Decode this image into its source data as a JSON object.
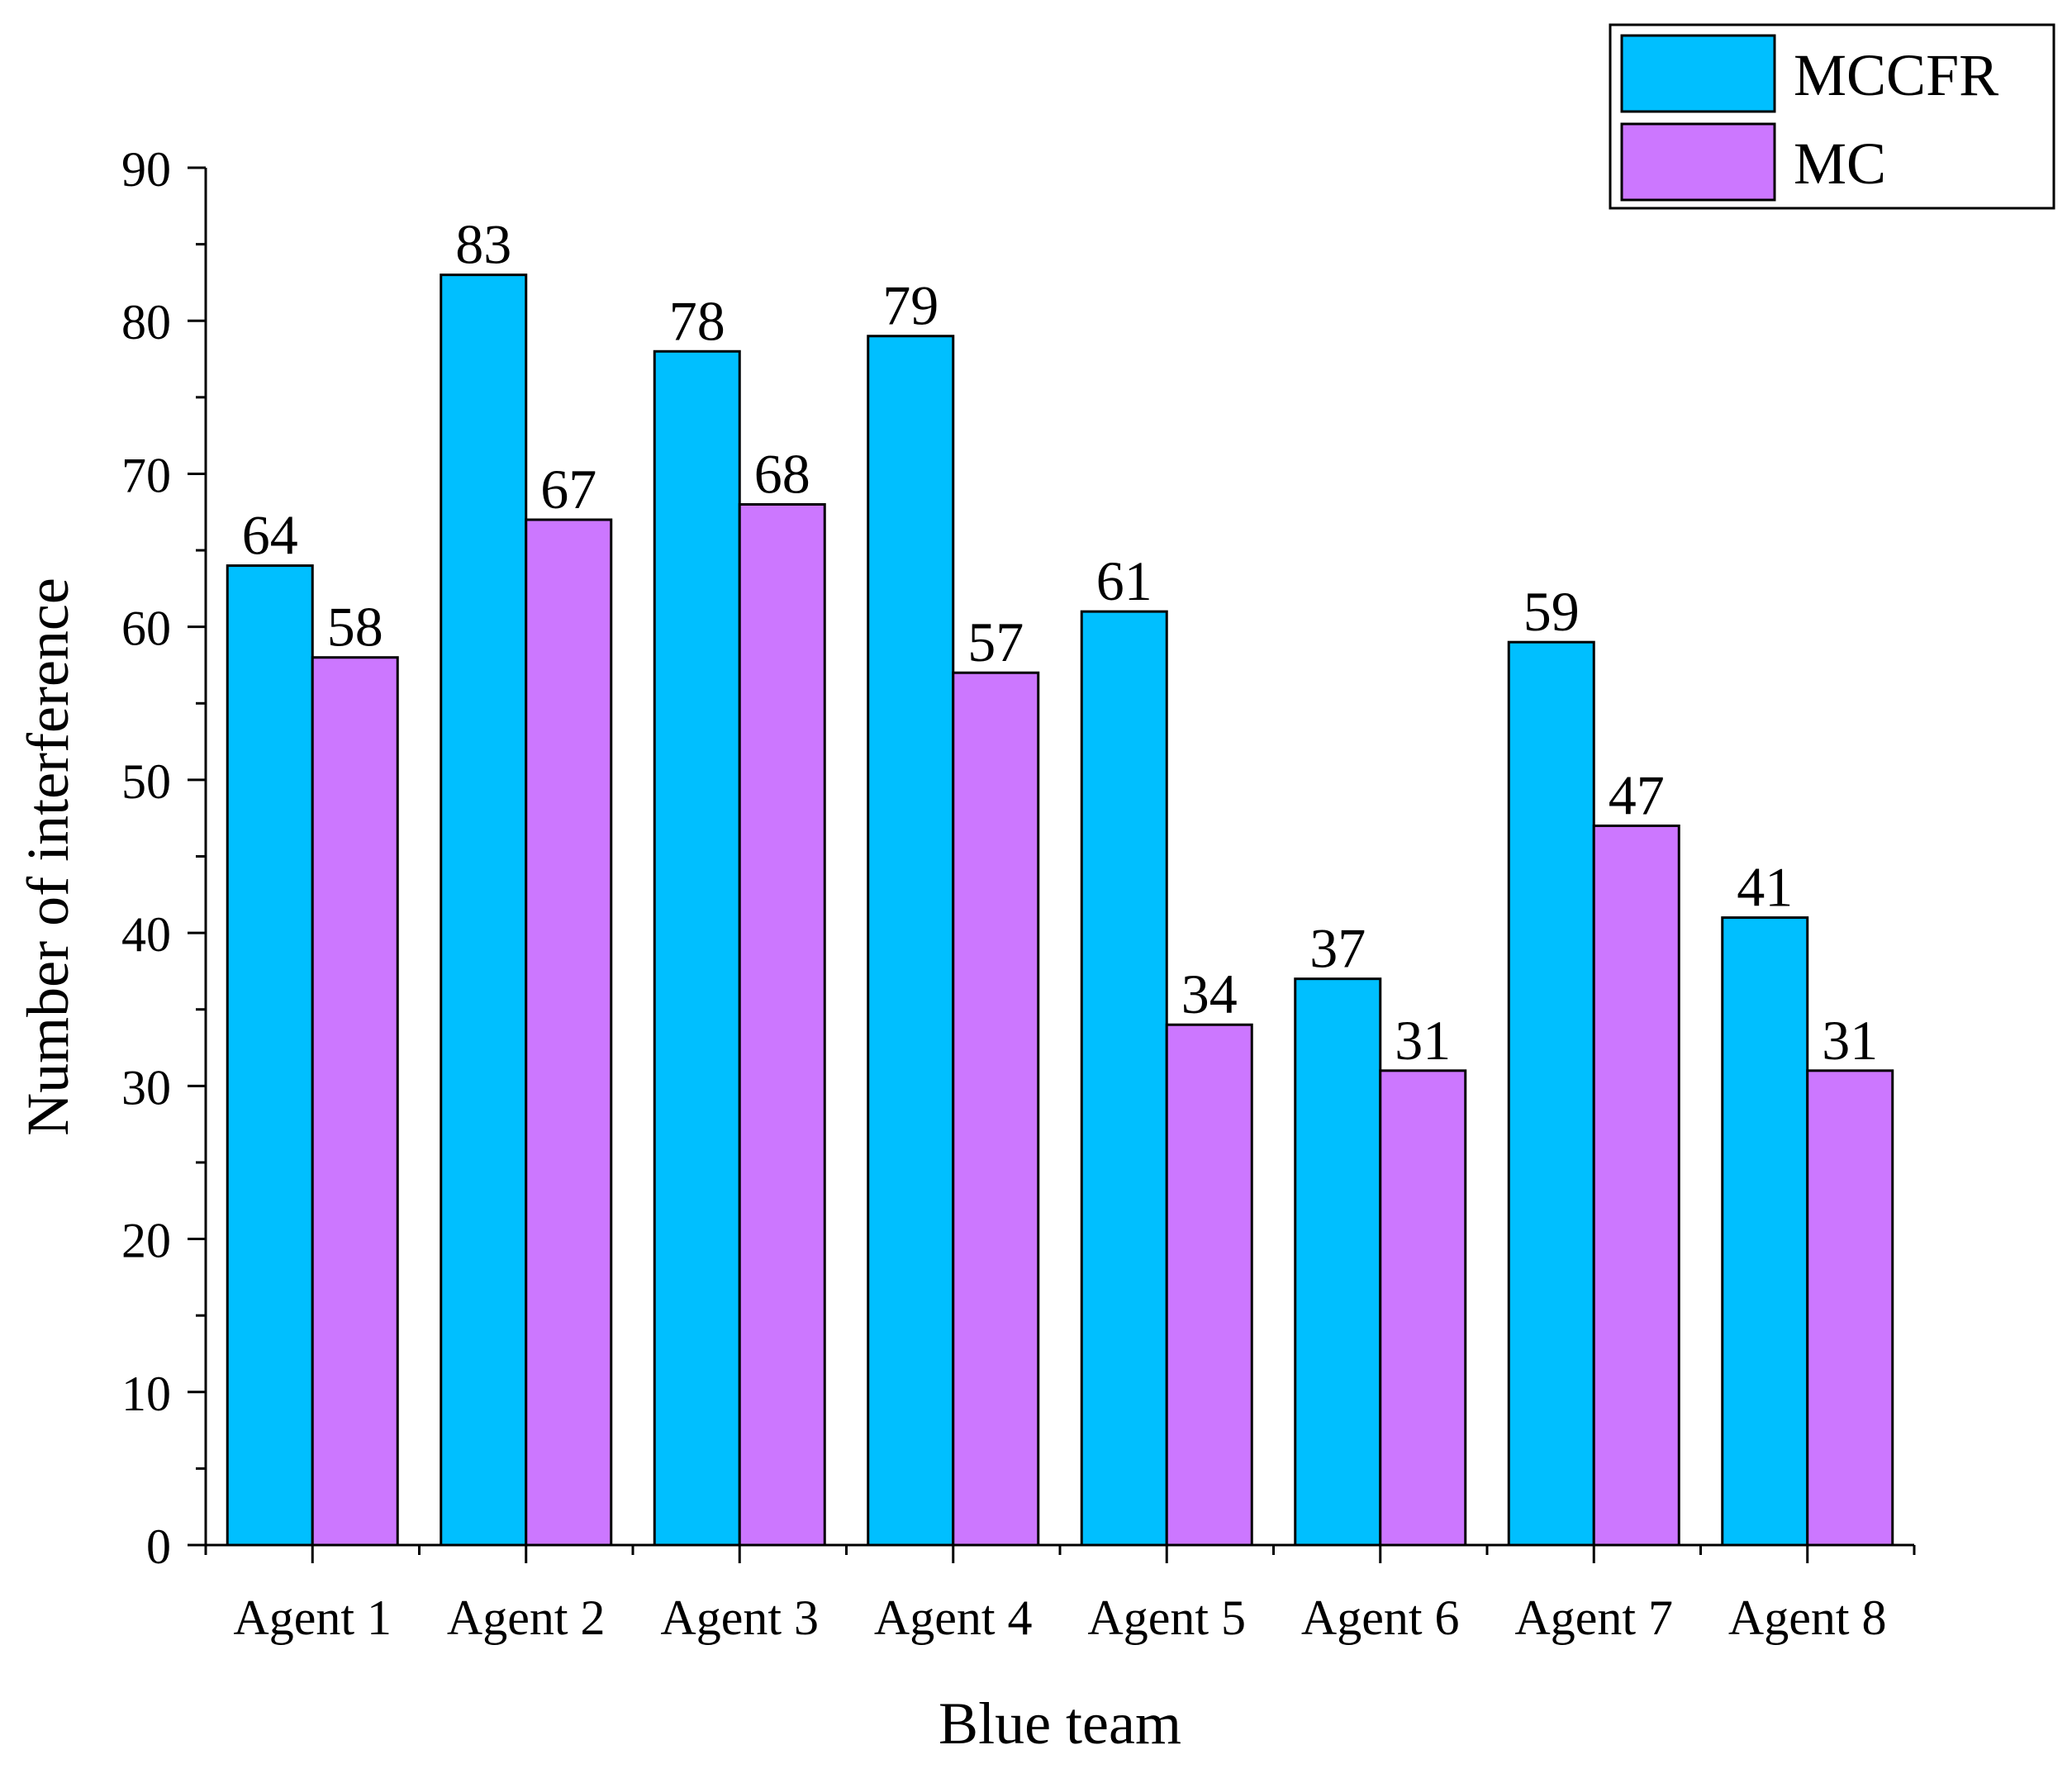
{
  "chart_data": {
    "type": "bar",
    "title": "",
    "xlabel": "Blue team",
    "ylabel": "Number of interference",
    "categories": [
      "Agent 1",
      "Agent 2",
      "Agent 3",
      "Agent 4",
      "Agent 5",
      "Agent 6",
      "Agent 7",
      "Agent 8"
    ],
    "series": [
      {
        "name": "MCCFR",
        "color": "#00BFFF",
        "values": [
          64,
          83,
          78,
          79,
          61,
          37,
          59,
          41
        ]
      },
      {
        "name": "MC",
        "color": "#CC77FF",
        "values": [
          58,
          67,
          68,
          57,
          34,
          31,
          47,
          31
        ]
      }
    ],
    "ylim": [
      0,
      90
    ],
    "yticks": [
      0,
      10,
      20,
      30,
      40,
      50,
      60,
      70,
      80,
      90
    ],
    "grid": false,
    "legend_position": "top-right",
    "data_labels": true
  }
}
